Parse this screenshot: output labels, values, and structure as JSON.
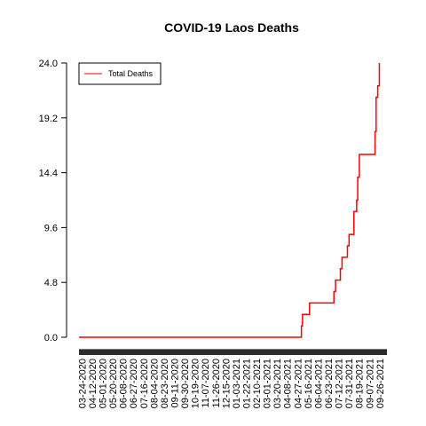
{
  "chart_data": {
    "type": "line",
    "title": "COVID-19 Laos Deaths",
    "xlabel": "",
    "ylabel": "",
    "ylim": [
      0,
      24
    ],
    "yticks": [
      "0.0",
      "4.8",
      "9.6",
      "14.4",
      "19.2",
      "24.0"
    ],
    "xlim": [
      "2020-03-24",
      "2021-10-14"
    ],
    "xtick_labels": [
      "03-24-2020",
      "04-12-2020",
      "05-01-2020",
      "05-20-2020",
      "06-08-2020",
      "06-27-2020",
      "07-16-2020",
      "08-04-2020",
      "08-23-2020",
      "09-11-2020",
      "09-30-2020",
      "10-19-2020",
      "11-07-2020",
      "11-26-2020",
      "12-15-2020",
      "01-03-2021",
      "01-22-2021",
      "02-10-2021",
      "03-01-2021",
      "03-20-2021",
      "04-08-2021",
      "04-27-2021",
      "05-16-2021",
      "06-04-2021",
      "06-23-2021",
      "07-12-2021",
      "07-31-2021",
      "08-19-2021",
      "09-07-2021",
      "09-26-2021"
    ],
    "legend": {
      "position": "top-left",
      "entries": [
        "Total Deaths"
      ]
    },
    "series": [
      {
        "name": "Total Deaths",
        "color": "#ff0000",
        "step": true,
        "points": [
          [
            "2020-03-24",
            0
          ],
          [
            "2021-05-08",
            0
          ],
          [
            "2021-05-09",
            1
          ],
          [
            "2021-05-11",
            2
          ],
          [
            "2021-05-24",
            3
          ],
          [
            "2021-07-08",
            4
          ],
          [
            "2021-07-11",
            5
          ],
          [
            "2021-07-20",
            6
          ],
          [
            "2021-07-23",
            7
          ],
          [
            "2021-08-02",
            8
          ],
          [
            "2021-08-05",
            9
          ],
          [
            "2021-08-14",
            11
          ],
          [
            "2021-08-19",
            12
          ],
          [
            "2021-08-21",
            14
          ],
          [
            "2021-08-24",
            16
          ],
          [
            "2021-09-22",
            18
          ],
          [
            "2021-09-24",
            21
          ],
          [
            "2021-09-27",
            22
          ],
          [
            "2021-09-30",
            24
          ]
        ]
      }
    ]
  }
}
